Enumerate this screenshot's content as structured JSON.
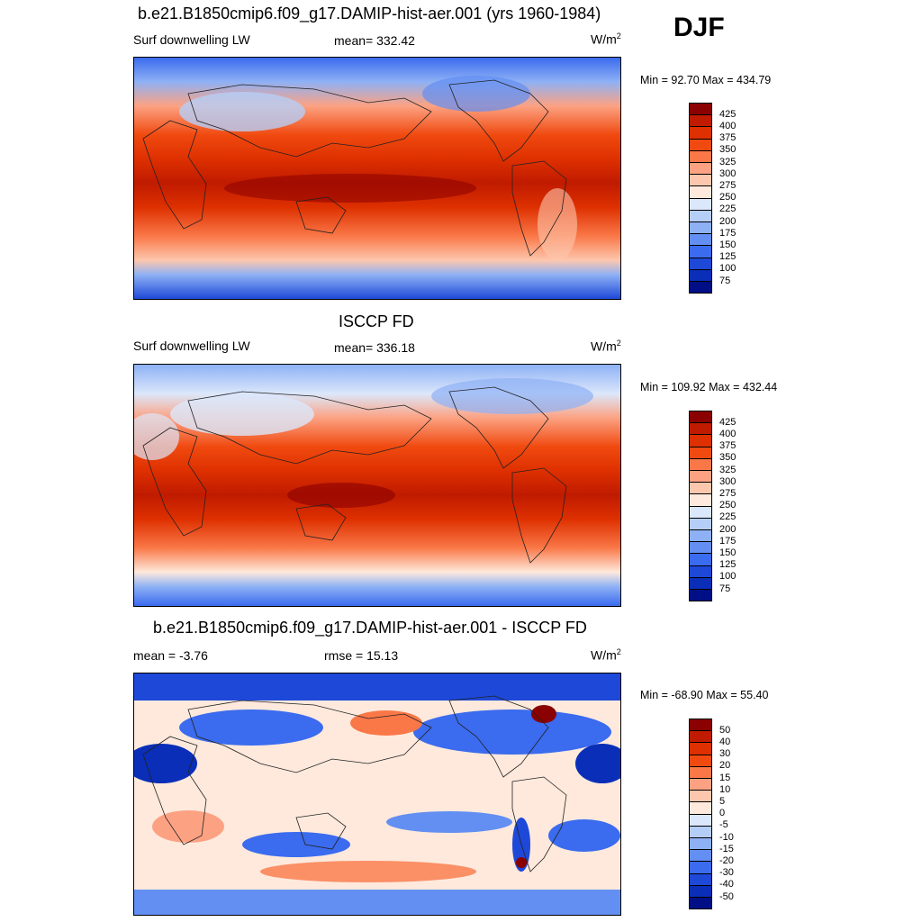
{
  "season": "DJF",
  "units_text": "W/m",
  "units_sup": "2",
  "panels": [
    {
      "id": "model",
      "title": "b.e21.B1850cmip6.f09_g17.DAMIP-hist-aer.001 (yrs 1960-1984)",
      "left_label": "Surf downwelling LW",
      "center_label": "mean= 332.42",
      "minmax": "Min =  92.70 Max = 434.79",
      "levels": [
        "425",
        "400",
        "375",
        "350",
        "325",
        "300",
        "275",
        "250",
        "225",
        "200",
        "175",
        "150",
        "125",
        "100",
        "75"
      ],
      "colors": [
        "#8b0000",
        "#c01b00",
        "#de3000",
        "#f04a10",
        "#fa7848",
        "#fca283",
        "#fdc7ae",
        "#fee9dc",
        "#dbe7fb",
        "#b5cef8",
        "#8eb1f5",
        "#638ff2",
        "#3b6bee",
        "#1e48d8",
        "#0a2eb8",
        "#000f85"
      ]
    },
    {
      "id": "obs",
      "title": "ISCCP FD",
      "left_label": "Surf downwelling LW",
      "center_label": "mean= 336.18",
      "minmax": "Min = 109.92 Max = 432.44",
      "levels": [
        "425",
        "400",
        "375",
        "350",
        "325",
        "300",
        "275",
        "250",
        "225",
        "200",
        "175",
        "150",
        "125",
        "100",
        "75"
      ],
      "colors": [
        "#8b0000",
        "#c01b00",
        "#de3000",
        "#f04a10",
        "#fa7848",
        "#fca283",
        "#fdc7ae",
        "#fee9dc",
        "#dbe7fb",
        "#b5cef8",
        "#8eb1f5",
        "#638ff2",
        "#3b6bee",
        "#1e48d8",
        "#0a2eb8",
        "#000f85"
      ]
    },
    {
      "id": "diff",
      "title": "b.e21.B1850cmip6.f09_g17.DAMIP-hist-aer.001 - ISCCP FD",
      "left_label": "mean =  -3.76",
      "center_label": "rmse =  15.13",
      "minmax": "Min = -68.90 Max =  55.40",
      "levels": [
        "50",
        "40",
        "30",
        "20",
        "15",
        "10",
        "5",
        "0",
        "-5",
        "-10",
        "-15",
        "-20",
        "-30",
        "-40",
        "-50"
      ],
      "colors": [
        "#8b0000",
        "#c01b00",
        "#de3000",
        "#f04a10",
        "#fa7848",
        "#fca283",
        "#fdc7ae",
        "#fee9dc",
        "#dbe7fb",
        "#b5cef8",
        "#8eb1f5",
        "#638ff2",
        "#3b6bee",
        "#1e48d8",
        "#0a2eb8",
        "#000f85"
      ]
    }
  ]
}
